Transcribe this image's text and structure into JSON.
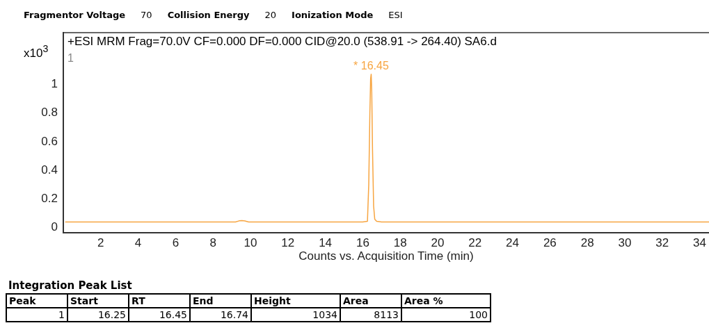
{
  "chart_data": {
    "type": "line",
    "title": "Fragmentor Voltage 70 Collision Energy 20 Ionization Mode ESI",
    "subtitle": "+ESI MRM Frag=70.0V CF=0.000 DF=0.000 CID@20.0 (538.91 -> 264.40) SA6.d",
    "xlabel": "Counts vs. Acquisition Time (min)",
    "ylabel": "x10$^{3}$",
    "x": [
      0.1,
      2,
      4,
      6,
      8,
      9.2,
      9.4,
      9.55,
      9.7,
      9.9,
      12,
      14,
      16,
      16.25,
      16.32,
      16.38,
      16.42,
      16.45,
      16.48,
      16.52,
      16.58,
      16.64,
      16.74,
      17,
      20,
      24,
      28,
      32,
      34.5
    ],
    "series": [
      {
        "color": "#f7a541",
        "values": [
          0.04,
          0.04,
          0.04,
          0.04,
          0.04,
          0.04,
          0.048,
          0.05,
          0.047,
          0.04,
          0.04,
          0.04,
          0.04,
          0.045,
          0.3,
          0.8,
          1.04,
          1.07,
          0.95,
          0.55,
          0.15,
          0.06,
          0.045,
          0.04,
          0.04,
          0.04,
          0.04,
          0.04,
          0.04
        ]
      }
    ],
    "xlim": [
      0,
      34.5
    ],
    "xticks": [
      2,
      4,
      6,
      8,
      10,
      12,
      14,
      16,
      18,
      20,
      22,
      24,
      26,
      28,
      30,
      32,
      34
    ],
    "ylim": [
      -0.035,
      1.36
    ],
    "yticks": [
      0,
      0.2,
      0.4,
      0.6,
      0.8,
      1
    ],
    "grid": false,
    "legend": false,
    "marker": "none",
    "line_style": "solid",
    "annotations": [
      {
        "text": "* 16.45",
        "x": 16.45,
        "y": 1.07
      },
      "1",
      "Integration Peak List",
      "Peak",
      "Start",
      "RT",
      "End",
      "Height",
      "Area",
      "Area %",
      "1",
      "16.25",
      "16.45",
      "16.74",
      "1034",
      "8113",
      "100"
    ]
  }
}
